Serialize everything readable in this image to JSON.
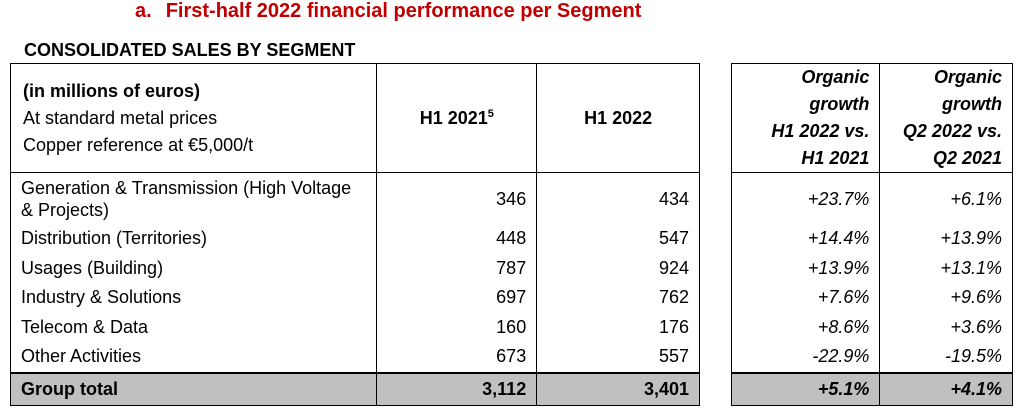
{
  "heading": {
    "number": "a.",
    "text": "First-half 2022 financial performance per Segment"
  },
  "subtitle": "CONSOLIDATED SALES BY SEGMENT",
  "table": {
    "header": {
      "label_line1": "(in millions of euros)",
      "label_line2": "At standard metal prices",
      "label_line3": "Copper reference at €5,000/t",
      "col_h1_2021": "H1 2021",
      "col_h1_2021_footnote": "5",
      "col_h1_2022": "H1 2022",
      "col_organic_h1": [
        "Organic",
        "growth",
        "H1 2022 vs.",
        "H1 2021"
      ],
      "col_organic_q2": [
        "Organic",
        "growth",
        "Q2 2022 vs.",
        "Q2 2021"
      ]
    },
    "rows": [
      {
        "segment": "Generation & Transmission (High Voltage & Projects)",
        "h1_2021": "346",
        "h1_2022": "434",
        "organic_h1": "+23.7%",
        "organic_q2": "+6.1%"
      },
      {
        "segment": "Distribution (Territories)",
        "h1_2021": "448",
        "h1_2022": "547",
        "organic_h1": "+14.4%",
        "organic_q2": "+13.9%"
      },
      {
        "segment": "Usages (Building)",
        "h1_2021": "787",
        "h1_2022": "924",
        "organic_h1": "+13.9%",
        "organic_q2": "+13.1%"
      },
      {
        "segment": "Industry & Solutions",
        "h1_2021": "697",
        "h1_2022": "762",
        "organic_h1": "+7.6%",
        "organic_q2": "+9.6%"
      },
      {
        "segment": "Telecom & Data",
        "h1_2021": "160",
        "h1_2022": "176",
        "organic_h1": "+8.6%",
        "organic_q2": "+3.6%"
      },
      {
        "segment": "Other Activities",
        "h1_2021": "673",
        "h1_2022": "557",
        "organic_h1": "-22.9%",
        "organic_q2": "-19.5%"
      }
    ],
    "total": {
      "segment": "Group total",
      "h1_2021": "3,112",
      "h1_2022": "3,401",
      "organic_h1": "+5.1%",
      "organic_q2": "+4.1%"
    },
    "total_fill": "#c0c0c0",
    "heading_color": "#c00000"
  }
}
